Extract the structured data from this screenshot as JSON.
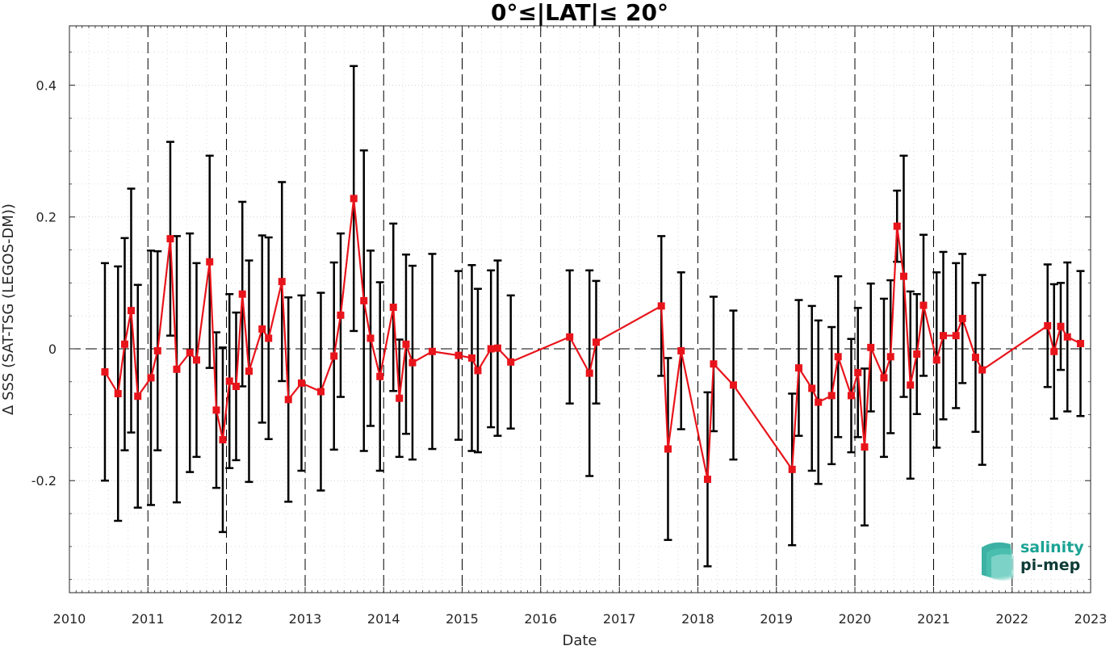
{
  "chart_data": {
    "type": "line",
    "title": "0°≤|LAT|≤ 20°",
    "xlabel": "Date",
    "ylabel": "Δ SSS (SAT-TSG (LEGOS-DM))",
    "xlim": [
      "2010-01-01",
      "2023-01-01"
    ],
    "ylim": [
      -0.37,
      0.49
    ],
    "x_ticks": [
      "2010",
      "2011",
      "2012",
      "2013",
      "2014",
      "2015",
      "2016",
      "2017",
      "2018",
      "2019",
      "2020",
      "2021",
      "2022",
      "2023"
    ],
    "y_ticks": [
      -0.2,
      0,
      0.2,
      0.4
    ],
    "y_tick_labels": [
      "-0.2",
      "0",
      "0.2",
      "0.4"
    ],
    "grid": true,
    "vertical_year_lines": true,
    "zero_line": true,
    "series_color": "#e8141b",
    "errorbar_color": "#000000",
    "series": [
      {
        "x": [
          "2010-06-15",
          "2010-08-15",
          "2010-09-15",
          "2010-10-15",
          "2010-11-15",
          "2011-01-15",
          "2011-02-15",
          "2011-04-15",
          "2011-05-15",
          "2011-07-15",
          "2011-08-15",
          "2011-10-15",
          "2011-11-15",
          "2011-12-15",
          "2012-01-15",
          "2012-02-15",
          "2012-03-15",
          "2012-04-15",
          "2012-06-15",
          "2012-07-15",
          "2012-09-15",
          "2012-10-15",
          "2012-12-15",
          "2013-03-15",
          "2013-05-15",
          "2013-06-15",
          "2013-08-15",
          "2013-10-01",
          "2013-11-01",
          "2013-12-15",
          "2014-02-15",
          "2014-03-15",
          "2014-04-15",
          "2014-05-15",
          "2014-08-15",
          "2014-12-15",
          "2015-02-15",
          "2015-03-15",
          "2015-05-15",
          "2015-06-15",
          "2015-08-15",
          "2016-05-15",
          "2016-08-15",
          "2016-09-15",
          "2017-07-15",
          "2017-08-15",
          "2017-10-15",
          "2018-02-15",
          "2018-03-15",
          "2018-06-15",
          "2019-03-15",
          "2019-04-15",
          "2019-06-15",
          "2019-07-15",
          "2019-09-15",
          "2019-10-15",
          "2019-12-15",
          "2020-01-15",
          "2020-02-15",
          "2020-03-15",
          "2020-05-15",
          "2020-06-15",
          "2020-07-15",
          "2020-08-15",
          "2020-09-15",
          "2020-10-15",
          "2020-11-15",
          "2021-01-15",
          "2021-02-15",
          "2021-04-15",
          "2021-05-15",
          "2021-07-15",
          "2021-08-15",
          "2022-06-15",
          "2022-07-15",
          "2022-08-15",
          "2022-09-15",
          "2022-11-15"
        ],
        "y": [
          -0.035,
          -0.068,
          0.007,
          0.058,
          -0.072,
          -0.044,
          -0.003,
          0.167,
          -0.031,
          -0.006,
          -0.017,
          0.132,
          -0.093,
          -0.138,
          -0.049,
          -0.057,
          0.083,
          -0.034,
          0.03,
          0.016,
          0.102,
          -0.077,
          -0.052,
          -0.065,
          -0.011,
          0.051,
          0.228,
          0.073,
          0.016,
          -0.042,
          0.063,
          -0.075,
          0.007,
          -0.021,
          -0.004,
          -0.01,
          -0.014,
          -0.033,
          0.0,
          0.001,
          -0.02,
          0.018,
          -0.037,
          0.01,
          0.065,
          -0.152,
          -0.003,
          -0.198,
          -0.023,
          -0.055,
          -0.183,
          -0.029,
          -0.06,
          -0.081,
          -0.071,
          -0.012,
          -0.071,
          -0.036,
          -0.149,
          0.002,
          -0.044,
          -0.012,
          0.186,
          0.11,
          -0.055,
          -0.008,
          0.066,
          -0.017,
          0.02,
          0.02,
          0.046,
          -0.013,
          -0.032,
          0.035,
          -0.004,
          0.034,
          0.018,
          0.008
        ],
        "yerr": [
          0.165,
          0.193,
          0.161,
          0.185,
          0.169,
          0.193,
          0.151,
          0.147,
          0.202,
          0.181,
          0.147,
          0.161,
          0.118,
          0.14,
          0.132,
          0.112,
          0.14,
          0.168,
          0.142,
          0.153,
          0.151,
          0.155,
          0.133,
          0.15,
          0.142,
          0.124,
          0.201,
          0.228,
          0.133,
          0.143,
          0.127,
          0.089,
          0.136,
          0.147,
          0.148,
          0.128,
          0.141,
          0.124,
          0.119,
          0.133,
          0.101,
          0.101,
          0.156,
          0.093,
          0.106,
          0.138,
          0.119,
          0.132,
          0.102,
          0.113,
          0.115,
          0.103,
          0.125,
          0.124,
          0.104,
          0.122,
          0.086,
          0.098,
          0.119,
          0.097,
          0.12,
          0.116,
          0.054,
          0.183,
          0.142,
          0.091,
          0.107,
          0.133,
          0.127,
          0.11,
          0.098,
          0.113,
          0.144,
          0.093,
          0.102,
          0.066,
          0.113,
          0.11
        ]
      }
    ]
  },
  "logo": {
    "line1": "salinity",
    "line2": "pi-mep",
    "color1": "#1aa394",
    "color2": "#0d3b36"
  }
}
